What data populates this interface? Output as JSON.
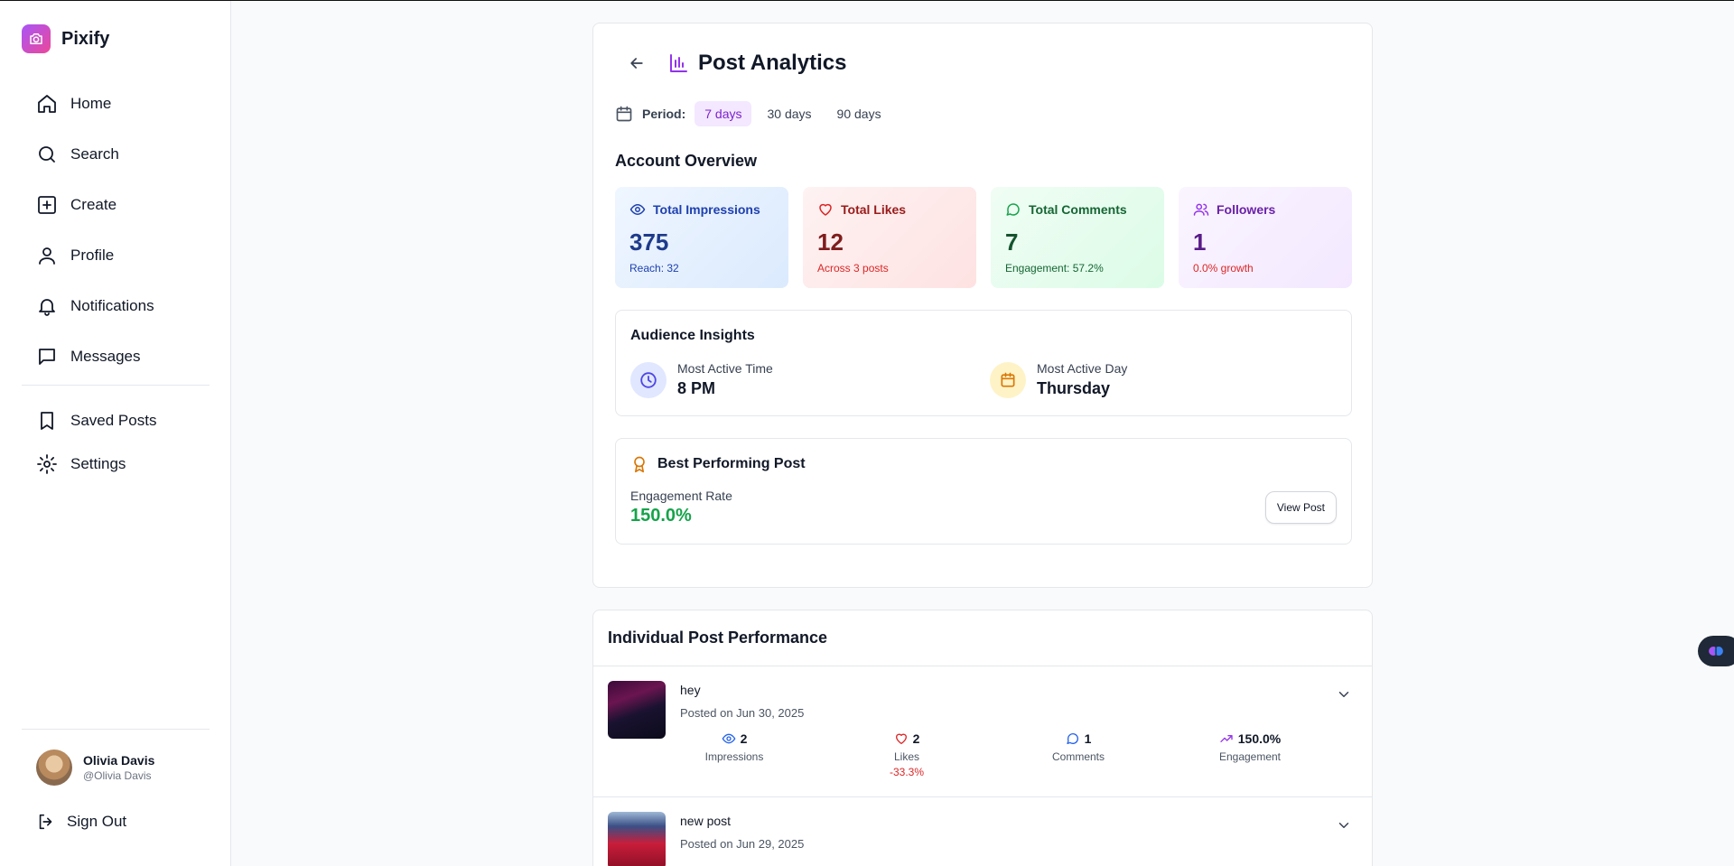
{
  "app": {
    "name": "Pixify"
  },
  "nav": {
    "items": [
      {
        "label": "Home",
        "icon": "home-icon"
      },
      {
        "label": "Search",
        "icon": "search-icon"
      },
      {
        "label": "Create",
        "icon": "plus-square-icon"
      },
      {
        "label": "Profile",
        "icon": "user-icon"
      },
      {
        "label": "Notifications",
        "icon": "bell-icon"
      },
      {
        "label": "Messages",
        "icon": "message-icon"
      }
    ],
    "secondary": [
      {
        "label": "Saved Posts",
        "icon": "bookmark-icon"
      },
      {
        "label": "Settings",
        "icon": "gear-icon"
      }
    ]
  },
  "user": {
    "name": "Olivia Davis",
    "handle": "@Olivia Davis"
  },
  "signout": {
    "label": "Sign Out"
  },
  "analytics": {
    "title": "Post Analytics",
    "period": {
      "label": "Period:",
      "options": [
        "7 days",
        "30 days",
        "90 days"
      ],
      "selected": "7 days"
    },
    "overview_title": "Account Overview",
    "stats": {
      "impressions": {
        "label": "Total Impressions",
        "value": "375",
        "sub": "Reach: 32",
        "color": "#2563eb"
      },
      "likes": {
        "label": "Total Likes",
        "value": "12",
        "sub": "Across 3 posts",
        "color": "#dc2626"
      },
      "comments": {
        "label": "Total Comments",
        "value": "7",
        "sub": "Engagement: 57.2%",
        "color": "#16a34a"
      },
      "followers": {
        "label": "Followers",
        "value": "1",
        "sub": "0.0% growth",
        "color": "#9333ea"
      }
    },
    "insights": {
      "title": "Audience Insights",
      "time": {
        "label": "Most Active Time",
        "value": "8 PM"
      },
      "day": {
        "label": "Most Active Day",
        "value": "Thursday"
      }
    },
    "best": {
      "title": "Best Performing Post",
      "rate_label": "Engagement Rate",
      "rate_value": "150.0%",
      "button": "View Post"
    }
  },
  "posts": {
    "title": "Individual Post Performance",
    "items": [
      {
        "caption": "hey",
        "date": "Posted on Jun 30, 2025",
        "impressions": "2",
        "impressions_label": "Impressions",
        "likes": "2",
        "likes_label": "Likes",
        "likes_change": "-33.3%",
        "comments": "1",
        "comments_label": "Comments",
        "engagement": "150.0%",
        "engagement_label": "Engagement"
      },
      {
        "caption": "new post",
        "date": "Posted on Jun 29, 2025"
      }
    ]
  }
}
